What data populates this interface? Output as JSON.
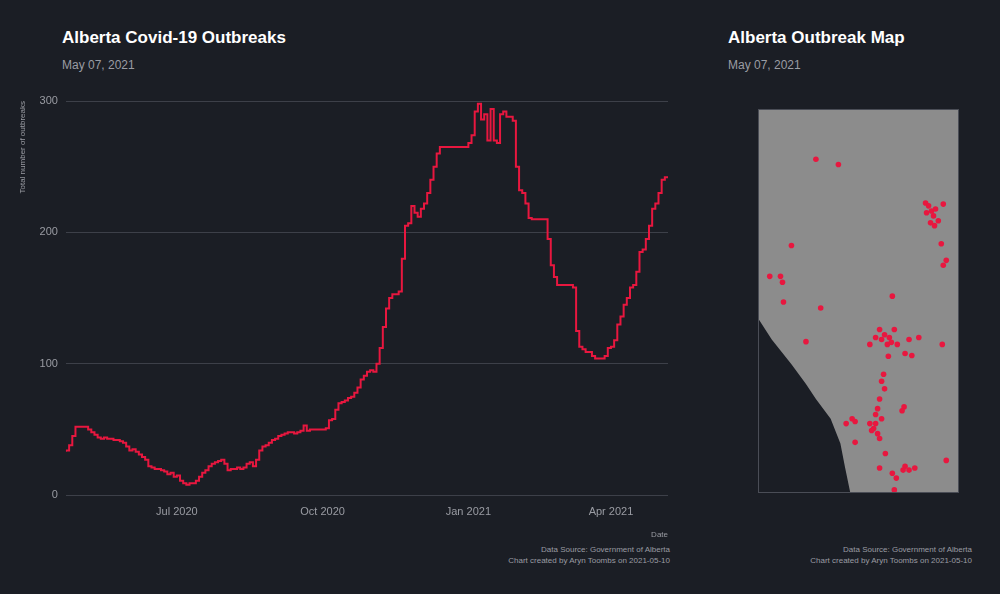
{
  "chart_data": [
    {
      "type": "line",
      "title": "Alberta Covid-19 Outbreaks",
      "subtitle": "May 07, 2021",
      "caption": [
        "Data Source: Government of Alberta",
        "Chart created by Aryn Toombs on 2021-05-10"
      ],
      "x_label": "Date",
      "y_label": "Total number of outbreaks",
      "categories": [
        null,
        null,
        null,
        null,
        null,
        null,
        null,
        null,
        null,
        null,
        null,
        null,
        null,
        null,
        null,
        null,
        null,
        null,
        null,
        null,
        null,
        null,
        null,
        null,
        null,
        null,
        null,
        null,
        null,
        null,
        null,
        null,
        null,
        null,
        null,
        "Jul 2020",
        null,
        null,
        null,
        null,
        null,
        null,
        null,
        null,
        null,
        null,
        null,
        null,
        null,
        null,
        null,
        null,
        null,
        null,
        null,
        null,
        null,
        null,
        null,
        null,
        null,
        null,
        null,
        null,
        null,
        null,
        null,
        null,
        null,
        null,
        null,
        null,
        null,
        null,
        null,
        null,
        null,
        null,
        null,
        null,
        null,
        "Oct 2020",
        null,
        null,
        null,
        null,
        null,
        null,
        null,
        null,
        null,
        null,
        null,
        null,
        null,
        null,
        null,
        null,
        null,
        null,
        null,
        null,
        null,
        null,
        null,
        null,
        null,
        null,
        null,
        null,
        null,
        null,
        null,
        null,
        null,
        null,
        null,
        null,
        null,
        null,
        null,
        null,
        null,
        null,
        null,
        null,
        null,
        "Jan 2021",
        null,
        null,
        null,
        null,
        null,
        null,
        null,
        null,
        null,
        null,
        null,
        null,
        null,
        null,
        null,
        null,
        null,
        null,
        null,
        null,
        null,
        null,
        null,
        null,
        null,
        null,
        null,
        null,
        null,
        null,
        null,
        null,
        null,
        null,
        null,
        null,
        null,
        null,
        null,
        null,
        null,
        null,
        null,
        null,
        "Apr 2021",
        null,
        null,
        null,
        null,
        null,
        null,
        null,
        null,
        null,
        null,
        null,
        null,
        null,
        null,
        null,
        null,
        null,
        null
      ],
      "values": [
        33,
        34,
        38,
        45,
        52,
        52,
        52,
        52,
        50,
        48,
        46,
        44,
        43,
        44,
        43,
        43,
        42,
        42,
        41,
        40,
        37,
        34,
        35,
        33,
        31,
        29,
        27,
        22,
        21,
        20,
        20,
        19,
        18,
        16,
        17,
        14,
        15,
        11,
        9,
        8,
        9,
        9,
        11,
        14,
        17,
        19,
        22,
        24,
        25,
        26,
        27,
        24,
        19,
        20,
        20,
        21,
        20,
        21,
        24,
        25,
        22,
        27,
        34,
        37,
        38,
        40,
        42,
        43,
        45,
        46,
        47,
        48,
        48,
        47,
        48,
        49,
        53,
        49,
        50,
        50,
        50,
        50,
        50,
        51,
        57,
        58,
        65,
        70,
        71,
        72,
        74,
        75,
        78,
        82,
        88,
        91,
        94,
        95,
        94,
        100,
        112,
        128,
        142,
        150,
        153,
        153,
        155,
        180,
        205,
        207,
        220,
        215,
        212,
        218,
        222,
        230,
        240,
        250,
        260,
        265,
        265,
        265,
        265,
        265,
        265,
        265,
        265,
        265,
        268,
        274,
        292,
        298,
        286,
        290,
        270,
        294,
        270,
        268,
        290,
        292,
        288,
        288,
        285,
        250,
        232,
        230,
        222,
        211,
        210,
        210,
        210,
        210,
        210,
        195,
        175,
        166,
        160,
        160,
        160,
        160,
        160,
        158,
        125,
        113,
        111,
        109,
        109,
        106,
        104,
        104,
        104,
        106,
        112,
        113,
        118,
        130,
        136,
        145,
        150,
        158,
        160,
        170,
        185,
        187,
        195,
        205,
        218,
        222,
        230,
        240,
        242
      ],
      "color": "#e8173f",
      "line_style": "step",
      "ylim": [
        0,
        300
      ],
      "yticks": [
        0,
        100,
        200,
        300
      ],
      "grid": "y"
    },
    {
      "type": "scatter",
      "title": "Alberta Outbreak Map",
      "subtitle": "May 07, 2021",
      "caption": [
        "Data Source: Government of Alberta",
        "Chart created by Aryn Toombs on 2021-05-10"
      ],
      "x": [
        -117.14,
        -116.01,
        -111.63,
        -111.48,
        -111.33,
        -111.23,
        -111.13,
        -110.99,
        -111.38,
        -111.18,
        -110.74,
        -111.58,
        -110.84,
        -110.74,
        -110.59,
        -118.37,
        -119.46,
        -118.92,
        -118.82,
        -118.77,
        -116.9,
        -117.64,
        -113.3,
        -113.94,
        -113.69,
        -113.45,
        -113.2,
        -113.55,
        -113.84,
        -114.14,
        -113.35,
        -113.05,
        -112.46,
        -111.97,
        -114.43,
        -112.66,
        -112.32,
        -110.79,
        -113.5,
        -113.74,
        -113.84,
        -113.69,
        -113.94,
        -114.04,
        -113.84,
        -114.14,
        -114.24,
        -114.04,
        -113.94,
        -114.34,
        -114.43,
        -114.14,
        -115.32,
        -115.62,
        -115.17,
        -112.71,
        -112.81,
        -113.65,
        -112.66,
        -112.46,
        -112.76,
        -112.17,
        -113.3,
        -113.94,
        -113.1,
        -113.2,
        -110.59,
        -115.17
      ],
      "values": [
        58.58,
        58.43,
        57.32,
        57.24,
        57.09,
        56.95,
        57.15,
        56.81,
        56.75,
        56.67,
        57.29,
        57.04,
        56.15,
        55.53,
        55.67,
        56.1,
        55.21,
        55.21,
        55.04,
        54.47,
        54.3,
        53.33,
        54.64,
        53.68,
        53.53,
        53.45,
        53.68,
        53.25,
        53.39,
        53.45,
        53.31,
        53.25,
        53.39,
        53.45,
        53.25,
        52.99,
        52.93,
        53.25,
        52.91,
        52.39,
        52.19,
        51.97,
        51.68,
        51.4,
        51.11,
        50.97,
        50.83,
        50.68,
        50.54,
        50.77,
        50.97,
        51.23,
        51.11,
        50.97,
        51.03,
        51.45,
        51.34,
        50.11,
        49.74,
        49.63,
        49.63,
        49.69,
        49.54,
        49.69,
        49.4,
        49.06,
        49.91,
        50.43
      ],
      "color": "#e8173f",
      "marker": "circle",
      "outline": {
        "x": [
          -120,
          -120,
          -119.36,
          -118.37,
          -117.64,
          -117.14,
          -116.4,
          -115.91,
          -115.67,
          -115.42,
          -110
        ],
        "y": [
          60,
          53.96,
          53.39,
          52.68,
          52.11,
          51.68,
          51.11,
          50.4,
          49.69,
          49,
          49
        ]
      },
      "xlim": [
        -120,
        -110
      ],
      "ylim": [
        49,
        60
      ],
      "grid": false,
      "tick_labels": false
    }
  ]
}
